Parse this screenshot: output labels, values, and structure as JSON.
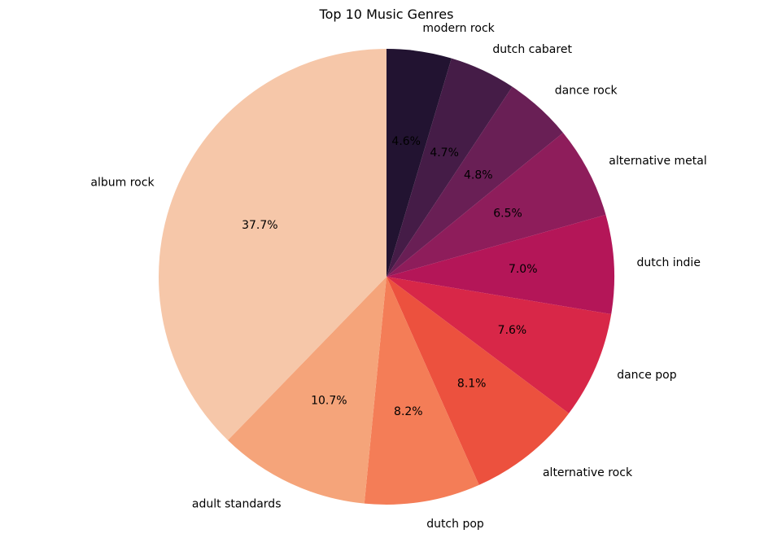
{
  "chart_data": {
    "type": "pie",
    "title": "Top 10 Music Genres",
    "start_angle_deg": 90,
    "direction": "clockwise",
    "legend": "none",
    "slices": [
      {
        "label": "modern rock",
        "value": 4.6,
        "pct_label": "4.6%",
        "color": "#221331"
      },
      {
        "label": "dutch cabaret",
        "value": 4.7,
        "pct_label": "4.7%",
        "color": "#451c47"
      },
      {
        "label": "dance rock",
        "value": 4.8,
        "pct_label": "4.8%",
        "color": "#691f55"
      },
      {
        "label": "alternative metal",
        "value": 6.5,
        "pct_label": "6.5%",
        "color": "#8e1d5b"
      },
      {
        "label": "dutch indie",
        "value": 7.0,
        "pct_label": "7.0%",
        "color": "#b41658"
      },
      {
        "label": "dance pop",
        "value": 7.6,
        "pct_label": "7.6%",
        "color": "#d82748"
      },
      {
        "label": "alternative rock",
        "value": 8.1,
        "pct_label": "8.1%",
        "color": "#ec513e"
      },
      {
        "label": "dutch pop",
        "value": 8.2,
        "pct_label": "8.2%",
        "color": "#f47d57"
      },
      {
        "label": "adult standards",
        "value": 10.7,
        "pct_label": "10.7%",
        "color": "#f5a47a"
      },
      {
        "label": "album rock",
        "value": 37.7,
        "pct_label": "37.7%",
        "color": "#f6c7a9"
      }
    ]
  }
}
